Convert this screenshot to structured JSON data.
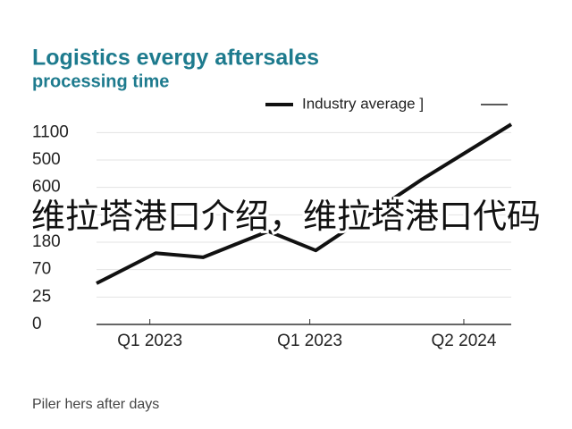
{
  "chart_data": {
    "type": "line",
    "title": "Logistics evergy aftersales",
    "subtitle": "processing time",
    "x": [
      0,
      1,
      1.8,
      2.9,
      3.7,
      5.5,
      7
    ],
    "xlim": [
      0,
      7
    ],
    "xticks": [
      {
        "value": 0.9,
        "label": "Q1 2023"
      },
      {
        "value": 3.6,
        "label": "Q1 2023"
      },
      {
        "value": 6.2,
        "label": "Q2 2024"
      }
    ],
    "ylim": [
      0,
      7.5
    ],
    "yticks": [
      {
        "value": 0,
        "label": "0"
      },
      {
        "value": 1,
        "label": "25"
      },
      {
        "value": 2,
        "label": "70"
      },
      {
        "value": 3,
        "label": "180"
      },
      {
        "value": 4,
        "label": null
      },
      {
        "value": 5,
        "label": "600"
      },
      {
        "value": 6,
        "label": "500"
      },
      {
        "value": 7,
        "label": "1100"
      }
    ],
    "grid": true,
    "series": [
      {
        "name": "Industry average ]",
        "color": "#111111",
        "values": [
          1.5,
          2.6,
          2.45,
          3.4,
          2.7,
          5.3,
          7.3
        ]
      }
    ],
    "footnote": "Piler hers after days",
    "watermark": "维拉塔港口介绍，维拉塔港口代码"
  }
}
